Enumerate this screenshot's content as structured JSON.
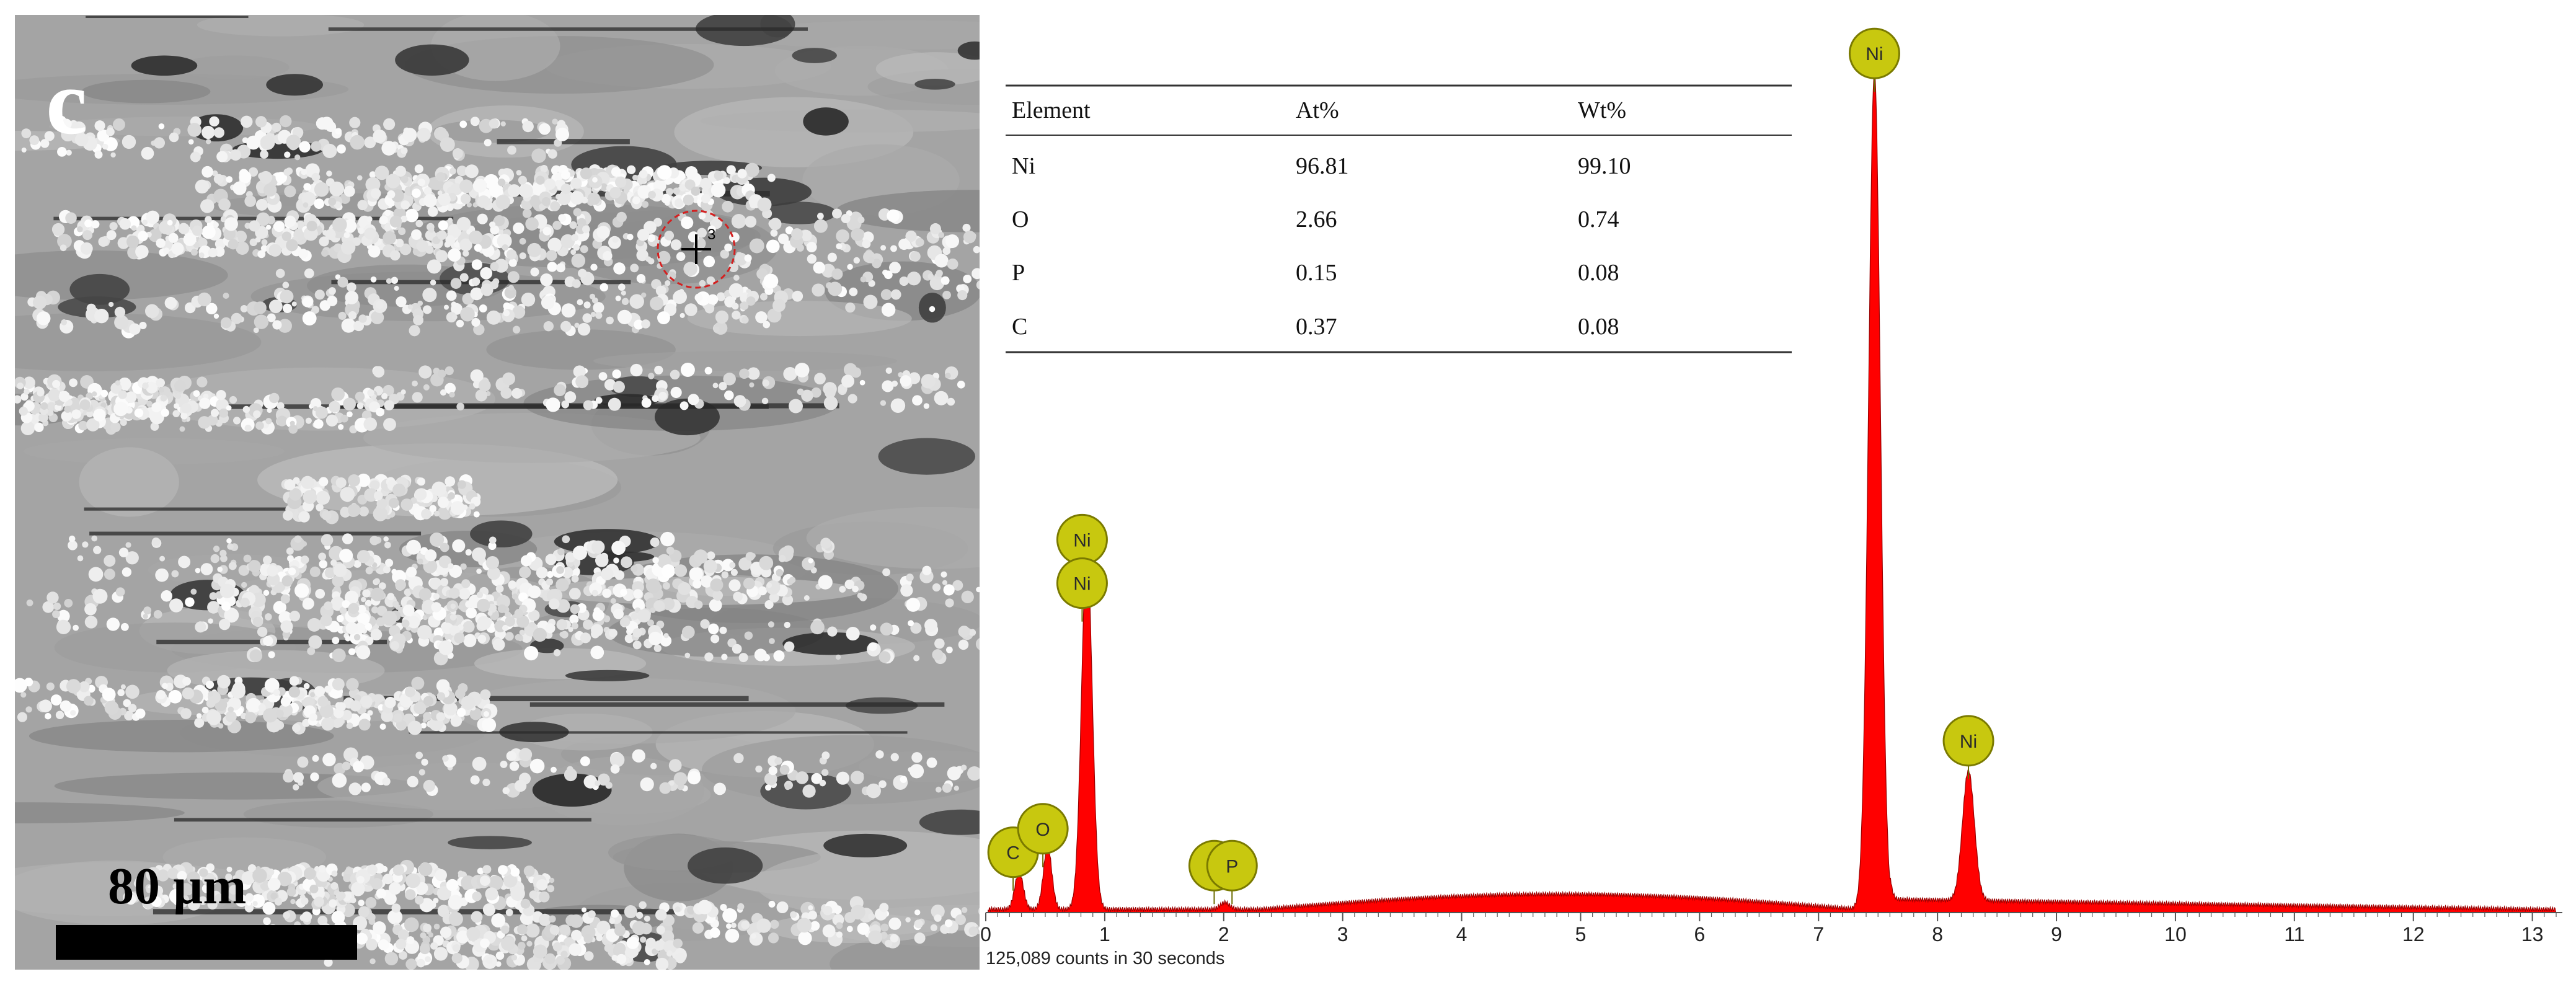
{
  "sem": {
    "panel_label": "c",
    "scale_label": "80 µm",
    "marker_number": "3"
  },
  "chart_data": {
    "type": "line",
    "x_ticks": [
      0,
      1,
      2,
      3,
      4,
      5,
      6,
      7,
      8,
      9,
      10,
      11,
      12,
      13
    ],
    "xlim": [
      0,
      13.2
    ],
    "counts_text": "125,089 counts in 30 seconds",
    "color": "#ff0000",
    "peaks": [
      {
        "label": "C",
        "x": 0.28,
        "intensity": 0.045
      },
      {
        "label": "O",
        "x": 0.52,
        "intensity": 0.075
      },
      {
        "label": "Ni",
        "x": 0.85,
        "intensity": 0.43
      },
      {
        "label": "P",
        "x": 2.01,
        "intensity": 0.008
      },
      {
        "label": "Ni",
        "x": 7.47,
        "intensity": 1.0
      },
      {
        "label": "Ni",
        "x": 8.26,
        "intensity": 0.155
      }
    ],
    "badges": [
      {
        "label": "C",
        "x": 0.23,
        "intensity": 0.072
      },
      {
        "label": "O",
        "x": 0.48,
        "intensity": 0.1
      },
      {
        "label": "Ni",
        "x": 0.81,
        "intensity": 0.445
      },
      {
        "label": "Ni",
        "x": 0.81,
        "intensity": 0.393
      },
      {
        "label": "P",
        "x": 1.92,
        "intensity": 0.056
      },
      {
        "label": "P",
        "x": 2.07,
        "intensity": 0.056
      },
      {
        "label": "Ni",
        "x": 7.47,
        "intensity": 1.025
      },
      {
        "label": "Ni",
        "x": 8.26,
        "intensity": 0.205
      }
    ],
    "table": {
      "headers": [
        "Element",
        "At%",
        "Wt%"
      ],
      "rows": [
        [
          "Ni",
          "96.81",
          "99.10"
        ],
        [
          "O",
          "2.66",
          "0.74"
        ],
        [
          "P",
          "0.15",
          "0.08"
        ],
        [
          "C",
          "0.37",
          "0.08"
        ]
      ]
    }
  }
}
